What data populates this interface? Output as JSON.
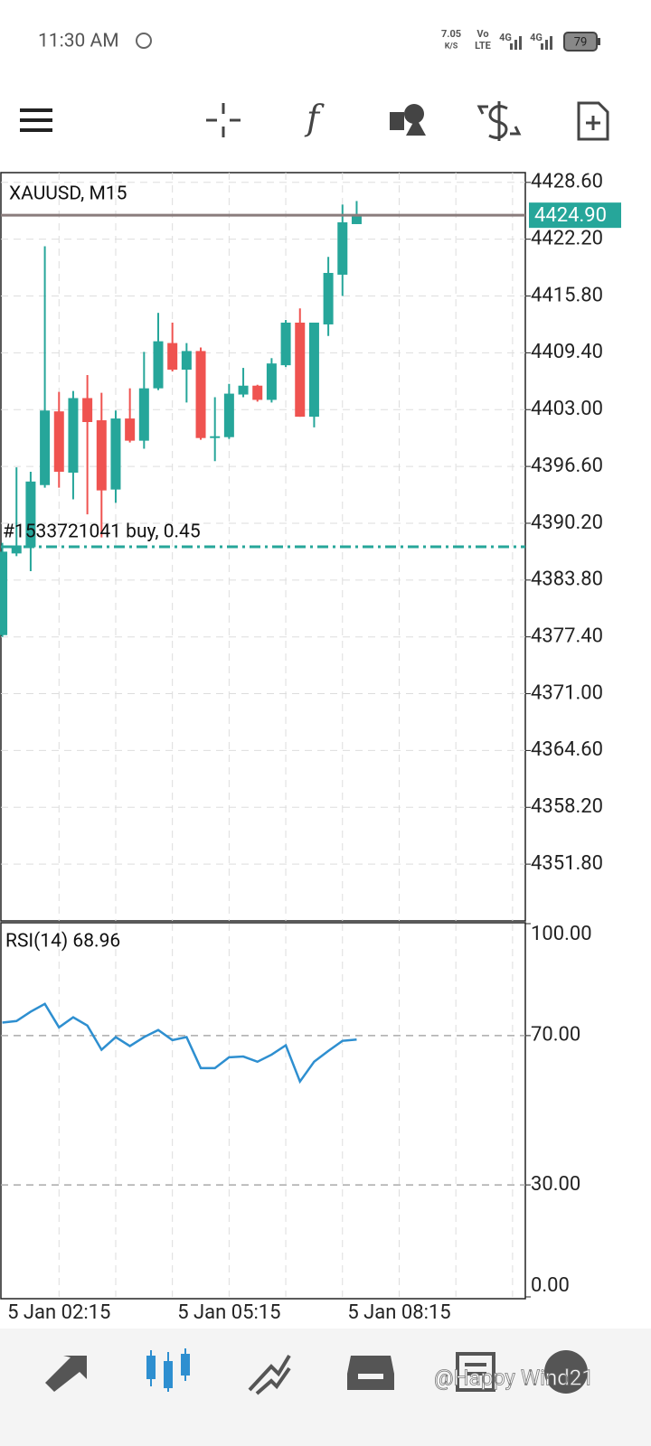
{
  "status_bar": {
    "time": "11:30 AM",
    "speed": "7.05",
    "speed_unit": "K/S",
    "volte_top": "Vo",
    "volte_bottom": "LTE",
    "net1": "4G",
    "net2": "4G",
    "battery": "79"
  },
  "chart_data": [
    {
      "type": "candlestick",
      "title": "XAUUSD, M15",
      "x": [
        0,
        1,
        2,
        3,
        4,
        5,
        6,
        7,
        8,
        9,
        10,
        11,
        12,
        13,
        14,
        15,
        16,
        17,
        18,
        19,
        20,
        21,
        22,
        23,
        24,
        25
      ],
      "open": [
        4377.6,
        4386.8,
        4387.5,
        4394.5,
        4402.8,
        4395.9,
        4404.3,
        4401.8,
        4394.0,
        4402.0,
        4399.5,
        4405.4,
        4410.5,
        4407.5,
        4409.6,
        4399.8,
        4399.9,
        4404.7,
        4405.7,
        4404.1,
        4408.0,
        4412.8,
        4402.2,
        4412.6,
        4418.2,
        4423.9
      ],
      "high": [
        4388.0,
        4396.5,
        4396.0,
        4421.4,
        4405.0,
        4405.1,
        4406.9,
        4404.9,
        4402.9,
        4405.4,
        4409.5,
        4413.9,
        4412.8,
        4410.5,
        4410.0,
        4404.4,
        4405.9,
        4407.7,
        4405.8,
        4408.8,
        4413.1,
        4414.4,
        4412.8,
        4420.2,
        4426.1,
        4426.5
      ],
      "low": [
        4377.4,
        4386.5,
        4384.8,
        4394.2,
        4394.2,
        4392.9,
        4391.2,
        4388.6,
        4392.5,
        4399.3,
        4398.6,
        4405.2,
        4407.3,
        4403.8,
        4399.6,
        4397.2,
        4399.7,
        4404.4,
        4403.9,
        4403.8,
        4407.8,
        4402.2,
        4401.0,
        4411.3,
        4415.8,
        4423.9
      ],
      "close": [
        4387.0,
        4387.7,
        4394.9,
        4402.9,
        4396.0,
        4404.3,
        4401.6,
        4393.9,
        4402.0,
        4399.5,
        4405.4,
        4410.7,
        4407.5,
        4409.6,
        4399.8,
        4400.0,
        4404.8,
        4405.7,
        4404.1,
        4408.2,
        4412.8,
        4402.2,
        4412.8,
        4418.4,
        4424.1,
        4424.9
      ],
      "up_color": "#26a69a",
      "down_color": "#ef5350",
      "xlim": [
        -0.1,
        36.9
      ],
      "xticks": [
        4,
        8,
        12,
        16,
        20,
        24,
        28,
        32,
        36
      ],
      "ylim": [
        4345.4,
        4429.7
      ],
      "yticks": [
        {
          "value": 4428.6,
          "label": "4428.60"
        },
        {
          "value": 4422.2,
          "label": "4422.20"
        },
        {
          "value": 4415.8,
          "label": "4415.80"
        },
        {
          "value": 4409.4,
          "label": "4409.40"
        },
        {
          "value": 4403.0,
          "label": "4403.00"
        },
        {
          "value": 4396.6,
          "label": "4396.60"
        },
        {
          "value": 4390.2,
          "label": "4390.20"
        },
        {
          "value": 4383.8,
          "label": "4383.80"
        },
        {
          "value": 4377.4,
          "label": "4377.40"
        },
        {
          "value": 4371.0,
          "label": "4371.00"
        },
        {
          "value": 4364.6,
          "label": "4364.60"
        },
        {
          "value": 4358.2,
          "label": "4358.20"
        },
        {
          "value": 4351.8,
          "label": "4351.80"
        }
      ],
      "grid": true,
      "current_price": 4424.9,
      "current_price_label": "4424.90",
      "current_price_color": "#26a69a",
      "order_price": 4387.55,
      "order_label": "#1533721041 buy, 0.45",
      "order_color": "#26a69a"
    },
    {
      "type": "line",
      "title": "RSI(14) 68.96",
      "x": [
        0,
        1,
        2,
        3,
        4,
        5,
        6,
        7,
        8,
        9,
        10,
        11,
        12,
        13,
        14,
        15,
        16,
        17,
        18,
        19,
        20,
        21,
        22,
        23,
        24,
        25
      ],
      "values": [
        73.5,
        73.9,
        76.4,
        78.5,
        72.2,
        74.9,
        72.7,
        66.2,
        69.6,
        67.2,
        69.6,
        71.5,
        68.8,
        69.6,
        61.3,
        61.3,
        64.2,
        64.4,
        63.0,
        64.9,
        67.4,
        57.7,
        63.0,
        65.9,
        68.6,
        68.96
      ],
      "color": "#2e8fd0",
      "xlim": [
        -0.1,
        36.9
      ],
      "xticks": [
        {
          "value": 4,
          "label": "5 Jan 02:15"
        },
        {
          "value": 8,
          "label": null
        },
        {
          "value": 12,
          "label": null
        },
        {
          "value": 16,
          "label": "5 Jan 05:15"
        },
        {
          "value": 20,
          "label": null
        },
        {
          "value": 24,
          "label": null
        },
        {
          "value": 28,
          "label": "5 Jan 08:15"
        },
        {
          "value": 32,
          "label": null
        },
        {
          "value": 36,
          "label": null
        }
      ],
      "ylim": [
        0,
        100
      ],
      "yticks": [
        {
          "value": 100,
          "label": "100.00"
        },
        {
          "value": 70,
          "label": "70.00"
        },
        {
          "value": 30,
          "label": "30.00"
        },
        {
          "value": 0,
          "label": "0.00"
        }
      ],
      "levels": [
        70,
        30
      ]
    }
  ],
  "watermark": "@Happy Wind21"
}
